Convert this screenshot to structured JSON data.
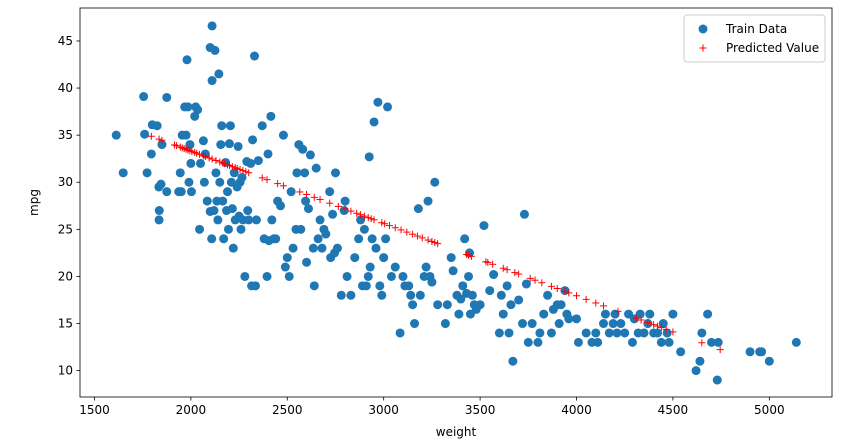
{
  "chart_data": {
    "type": "scatter",
    "xlabel": "weight",
    "ylabel": "mpg",
    "xlim": [
      1425,
      5325
    ],
    "ylim": [
      7.2,
      48.5
    ],
    "xticks": [
      1500,
      2000,
      2500,
      3000,
      3500,
      4000,
      4500,
      5000
    ],
    "yticks": [
      10,
      15,
      20,
      25,
      30,
      35,
      40,
      45
    ],
    "grid": false,
    "legend_position": "top-right",
    "series": [
      {
        "name": "Train Data",
        "marker": "circle",
        "color": "#1f77b4",
        "points": [
          [
            1613,
            35
          ],
          [
            1649,
            31
          ],
          [
            1755,
            39.1
          ],
          [
            1760,
            35.1
          ],
          [
            1773,
            31
          ],
          [
            1795,
            33
          ],
          [
            1800,
            36.1
          ],
          [
            1825,
            36
          ],
          [
            1834,
            29.5
          ],
          [
            1835,
            26
          ],
          [
            1836,
            27
          ],
          [
            1845,
            29.8
          ],
          [
            1850,
            34
          ],
          [
            1875,
            29
          ],
          [
            1875,
            39
          ],
          [
            1937,
            29
          ],
          [
            1945,
            31
          ],
          [
            1950,
            29
          ],
          [
            1955,
            35
          ],
          [
            1968,
            38
          ],
          [
            1975,
            35
          ],
          [
            1980,
            43
          ],
          [
            1985,
            38
          ],
          [
            1990,
            30
          ],
          [
            1995,
            34
          ],
          [
            2000,
            32
          ],
          [
            2003,
            29
          ],
          [
            2020,
            37
          ],
          [
            2025,
            38
          ],
          [
            2035,
            37.7
          ],
          [
            2045,
            25
          ],
          [
            2050,
            32
          ],
          [
            2065,
            34.4
          ],
          [
            2070,
            30
          ],
          [
            2075,
            33
          ],
          [
            2085,
            28
          ],
          [
            2100,
            44.3
          ],
          [
            2100,
            26.9
          ],
          [
            2108,
            24
          ],
          [
            2110,
            40.8
          ],
          [
            2110,
            46.6
          ],
          [
            2120,
            27
          ],
          [
            2125,
            44
          ],
          [
            2130,
            31
          ],
          [
            2135,
            28
          ],
          [
            2140,
            26
          ],
          [
            2145,
            41.5
          ],
          [
            2150,
            30
          ],
          [
            2155,
            34
          ],
          [
            2160,
            36
          ],
          [
            2165,
            28
          ],
          [
            2170,
            24
          ],
          [
            2180,
            32.1
          ],
          [
            2185,
            27
          ],
          [
            2190,
            29
          ],
          [
            2195,
            25
          ],
          [
            2200,
            34.1
          ],
          [
            2205,
            36
          ],
          [
            2210,
            30
          ],
          [
            2215,
            27.2
          ],
          [
            2220,
            23
          ],
          [
            2225,
            31
          ],
          [
            2230,
            26
          ],
          [
            2240,
            29.5
          ],
          [
            2245,
            33.8
          ],
          [
            2250,
            26.4
          ],
          [
            2255,
            30
          ],
          [
            2260,
            25
          ],
          [
            2265,
            30.5
          ],
          [
            2270,
            26
          ],
          [
            2280,
            20
          ],
          [
            2290,
            32.2
          ],
          [
            2295,
            27
          ],
          [
            2300,
            26
          ],
          [
            2310,
            32
          ],
          [
            2315,
            19
          ],
          [
            2320,
            34.5
          ],
          [
            2330,
            43.4
          ],
          [
            2335,
            19
          ],
          [
            2340,
            26
          ],
          [
            2350,
            32.3
          ],
          [
            2370,
            36
          ],
          [
            2380,
            24
          ],
          [
            2395,
            20
          ],
          [
            2400,
            33
          ],
          [
            2405,
            23.8
          ],
          [
            2415,
            37
          ],
          [
            2420,
            26
          ],
          [
            2430,
            24
          ],
          [
            2440,
            24
          ],
          [
            2450,
            28
          ],
          [
            2465,
            27.5
          ],
          [
            2480,
            35
          ],
          [
            2490,
            21
          ],
          [
            2500,
            22
          ],
          [
            2510,
            20
          ],
          [
            2520,
            29
          ],
          [
            2530,
            23
          ],
          [
            2545,
            25
          ],
          [
            2550,
            31
          ],
          [
            2560,
            34
          ],
          [
            2570,
            25
          ],
          [
            2580,
            33.5
          ],
          [
            2590,
            31
          ],
          [
            2595,
            28
          ],
          [
            2600,
            21.5
          ],
          [
            2610,
            27.2
          ],
          [
            2620,
            32.9
          ],
          [
            2635,
            23
          ],
          [
            2640,
            19
          ],
          [
            2650,
            31.5
          ],
          [
            2660,
            24
          ],
          [
            2670,
            26
          ],
          [
            2680,
            23
          ],
          [
            2690,
            25
          ],
          [
            2700,
            24.5
          ],
          [
            2720,
            29
          ],
          [
            2725,
            22
          ],
          [
            2735,
            26.6
          ],
          [
            2745,
            22.5
          ],
          [
            2750,
            31
          ],
          [
            2760,
            23
          ],
          [
            2780,
            18
          ],
          [
            2795,
            27
          ],
          [
            2800,
            28
          ],
          [
            2810,
            20
          ],
          [
            2830,
            18
          ],
          [
            2850,
            22
          ],
          [
            2870,
            24
          ],
          [
            2880,
            26
          ],
          [
            2890,
            19
          ],
          [
            2900,
            25
          ],
          [
            2910,
            19
          ],
          [
            2920,
            20
          ],
          [
            2925,
            32.7
          ],
          [
            2930,
            21
          ],
          [
            2940,
            24
          ],
          [
            2950,
            36.4
          ],
          [
            2960,
            23
          ],
          [
            2970,
            38.5
          ],
          [
            2980,
            19
          ],
          [
            2990,
            18
          ],
          [
            3000,
            22
          ],
          [
            3010,
            24
          ],
          [
            3020,
            38
          ],
          [
            3040,
            20
          ],
          [
            3060,
            21
          ],
          [
            3085,
            14
          ],
          [
            3100,
            20
          ],
          [
            3110,
            19
          ],
          [
            3130,
            19
          ],
          [
            3140,
            18
          ],
          [
            3150,
            17
          ],
          [
            3160,
            15
          ],
          [
            3180,
            27.2
          ],
          [
            3190,
            18
          ],
          [
            3210,
            20
          ],
          [
            3220,
            21
          ],
          [
            3230,
            28
          ],
          [
            3240,
            20
          ],
          [
            3250,
            19.4
          ],
          [
            3265,
            30
          ],
          [
            3280,
            17
          ],
          [
            3320,
            15
          ],
          [
            3330,
            17
          ],
          [
            3350,
            22
          ],
          [
            3360,
            20.6
          ],
          [
            3380,
            18
          ],
          [
            3390,
            16
          ],
          [
            3400,
            17.6
          ],
          [
            3410,
            19
          ],
          [
            3420,
            24
          ],
          [
            3430,
            18.2
          ],
          [
            3440,
            20
          ],
          [
            3445,
            22.5
          ],
          [
            3450,
            16
          ],
          [
            3460,
            18
          ],
          [
            3470,
            17
          ],
          [
            3480,
            16.5
          ],
          [
            3500,
            17
          ],
          [
            3520,
            25.4
          ],
          [
            3550,
            18.5
          ],
          [
            3570,
            20.2
          ],
          [
            3600,
            14
          ],
          [
            3610,
            18
          ],
          [
            3620,
            16
          ],
          [
            3640,
            19
          ],
          [
            3650,
            14
          ],
          [
            3660,
            17
          ],
          [
            3670,
            11
          ],
          [
            3700,
            17.5
          ],
          [
            3720,
            15
          ],
          [
            3730,
            26.6
          ],
          [
            3740,
            19.2
          ],
          [
            3750,
            13
          ],
          [
            3770,
            15
          ],
          [
            3800,
            13
          ],
          [
            3810,
            14
          ],
          [
            3830,
            16
          ],
          [
            3850,
            18
          ],
          [
            3870,
            14
          ],
          [
            3880,
            16.5
          ],
          [
            3900,
            17
          ],
          [
            3910,
            15
          ],
          [
            3920,
            17
          ],
          [
            3940,
            18.5
          ],
          [
            3950,
            16
          ],
          [
            3960,
            15.5
          ],
          [
            4000,
            15.5
          ],
          [
            4010,
            13
          ],
          [
            4050,
            14
          ],
          [
            4080,
            13
          ],
          [
            4100,
            14
          ],
          [
            4110,
            13
          ],
          [
            4140,
            15
          ],
          [
            4150,
            16
          ],
          [
            4170,
            14
          ],
          [
            4190,
            15
          ],
          [
            4200,
            16
          ],
          [
            4210,
            14
          ],
          [
            4230,
            15
          ],
          [
            4250,
            14
          ],
          [
            4270,
            16
          ],
          [
            4290,
            13
          ],
          [
            4300,
            15.5
          ],
          [
            4320,
            14
          ],
          [
            4330,
            16
          ],
          [
            4350,
            14
          ],
          [
            4370,
            15
          ],
          [
            4380,
            16
          ],
          [
            4400,
            14
          ],
          [
            4420,
            14
          ],
          [
            4440,
            13
          ],
          [
            4450,
            15
          ],
          [
            4470,
            14
          ],
          [
            4480,
            13
          ],
          [
            4500,
            16
          ],
          [
            4540,
            12
          ],
          [
            4620,
            10
          ],
          [
            4640,
            11
          ],
          [
            4650,
            14
          ],
          [
            4680,
            16
          ],
          [
            4700,
            13
          ],
          [
            4730,
            9
          ],
          [
            4735,
            13
          ],
          [
            4900,
            12
          ],
          [
            4950,
            12
          ],
          [
            4960,
            12
          ],
          [
            5000,
            11
          ],
          [
            5140,
            13
          ]
        ]
      },
      {
        "name": "Predicted Value",
        "marker": "plus",
        "color": "#ff0000",
        "slope": -0.00768,
        "intercept": 48.67,
        "x": [
          1795,
          1835,
          1850,
          1915,
          1925,
          1945,
          1955,
          1965,
          1975,
          1985,
          1995,
          2005,
          2020,
          2030,
          2045,
          2065,
          2075,
          2095,
          2110,
          2130,
          2150,
          2165,
          2175,
          2190,
          2200,
          2215,
          2230,
          2240,
          2255,
          2270,
          2285,
          2300,
          2370,
          2395,
          2450,
          2480,
          2565,
          2600,
          2640,
          2670,
          2720,
          2765,
          2800,
          2830,
          2860,
          2880,
          2900,
          2920,
          2935,
          2950,
          2990,
          3005,
          3030,
          3060,
          3090,
          3120,
          3150,
          3175,
          3200,
          3230,
          3250,
          3265,
          3280,
          3430,
          3440,
          3455,
          3530,
          3540,
          3565,
          3620,
          3640,
          3680,
          3700,
          3760,
          3785,
          3820,
          3870,
          3900,
          3940,
          3960,
          4000,
          4050,
          4100,
          4140,
          4215,
          4310,
          4335,
          4370,
          4400,
          4420,
          4440,
          4465,
          4500,
          4650,
          4745
        ]
      }
    ]
  }
}
